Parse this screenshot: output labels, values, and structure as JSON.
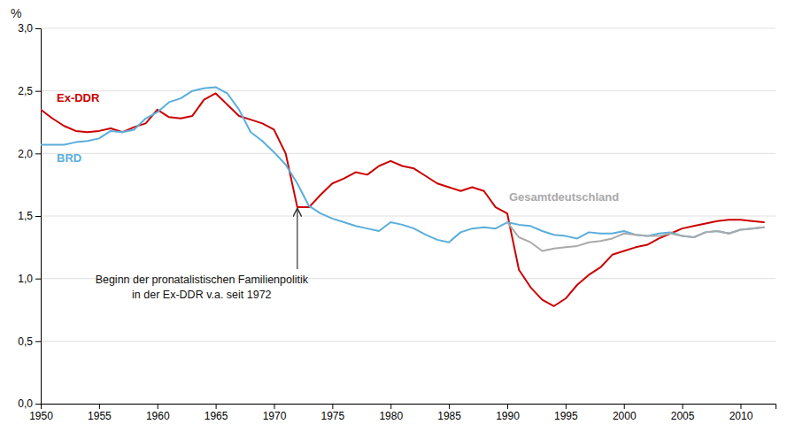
{
  "chart_data": {
    "type": "line",
    "y_label": "%",
    "xlim": [
      1950,
      2013
    ],
    "ylim": [
      0,
      3
    ],
    "xticks": [
      1950,
      1955,
      1960,
      1965,
      1970,
      1975,
      1980,
      1985,
      1990,
      1995,
      2000,
      2005,
      2010
    ],
    "yticks": [
      {
        "value": 0,
        "label": "0,0"
      },
      {
        "value": 0.5,
        "label": "0,5"
      },
      {
        "value": 1,
        "label": "1,0"
      },
      {
        "value": 1.5,
        "label": "1,5"
      },
      {
        "value": 2,
        "label": "2,0"
      },
      {
        "value": 2.5,
        "label": "2,5"
      },
      {
        "value": 3,
        "label": "3,0"
      }
    ],
    "grid": true,
    "series": [
      {
        "name": "Ex-DDR",
        "color": "#cc0000",
        "x": [
          1950,
          1951,
          1952,
          1953,
          1954,
          1955,
          1956,
          1957,
          1958,
          1959,
          1960,
          1961,
          1962,
          1963,
          1964,
          1965,
          1966,
          1967,
          1968,
          1969,
          1970,
          1971,
          1972,
          1973,
          1974,
          1975,
          1976,
          1977,
          1978,
          1979,
          1980,
          1981,
          1982,
          1983,
          1984,
          1985,
          1986,
          1987,
          1988,
          1989,
          1990,
          1991,
          1992,
          1993,
          1994,
          1995,
          1996,
          1997,
          1998,
          1999,
          2000,
          2001,
          2002,
          2003,
          2004,
          2005,
          2006,
          2007,
          2008,
          2009,
          2010,
          2011,
          2012
        ],
        "values": [
          2.35,
          2.28,
          2.22,
          2.18,
          2.17,
          2.18,
          2.2,
          2.17,
          2.21,
          2.24,
          2.35,
          2.29,
          2.28,
          2.3,
          2.43,
          2.48,
          2.39,
          2.3,
          2.27,
          2.24,
          2.19,
          2.0,
          1.57,
          1.57,
          1.67,
          1.76,
          1.8,
          1.85,
          1.83,
          1.9,
          1.94,
          1.9,
          1.88,
          1.82,
          1.76,
          1.73,
          1.7,
          1.73,
          1.7,
          1.57,
          1.52,
          1.07,
          0.93,
          0.83,
          0.78,
          0.84,
          0.95,
          1.03,
          1.09,
          1.19,
          1.22,
          1.25,
          1.27,
          1.32,
          1.36,
          1.4,
          1.42,
          1.44,
          1.46,
          1.47,
          1.47,
          1.46,
          1.45
        ]
      },
      {
        "name": "BRD",
        "color": "#5aaedc",
        "x": [
          1950,
          1951,
          1952,
          1953,
          1954,
          1955,
          1956,
          1957,
          1958,
          1959,
          1960,
          1961,
          1962,
          1963,
          1964,
          1965,
          1966,
          1967,
          1968,
          1969,
          1970,
          1971,
          1972,
          1973,
          1974,
          1975,
          1976,
          1977,
          1978,
          1979,
          1980,
          1981,
          1982,
          1983,
          1984,
          1985,
          1986,
          1987,
          1988,
          1989,
          1990,
          1991,
          1992,
          1993,
          1994,
          1995,
          1996,
          1997,
          1998,
          1999,
          2000,
          2001,
          2002,
          2003,
          2004,
          2005,
          2006,
          2007,
          2008,
          2009,
          2010,
          2011,
          2012
        ],
        "values": [
          2.07,
          2.07,
          2.07,
          2.09,
          2.1,
          2.12,
          2.18,
          2.17,
          2.19,
          2.28,
          2.33,
          2.41,
          2.44,
          2.5,
          2.52,
          2.53,
          2.48,
          2.35,
          2.17,
          2.1,
          2.01,
          1.91,
          1.76,
          1.58,
          1.52,
          1.48,
          1.45,
          1.42,
          1.4,
          1.38,
          1.45,
          1.43,
          1.4,
          1.35,
          1.31,
          1.29,
          1.37,
          1.4,
          1.41,
          1.4,
          1.45,
          1.43,
          1.42,
          1.38,
          1.35,
          1.34,
          1.32,
          1.37,
          1.36,
          1.36,
          1.38,
          1.35,
          1.34,
          1.36,
          1.37,
          1.34,
          1.33,
          1.37,
          1.38,
          1.36,
          1.39,
          1.4,
          1.41
        ]
      },
      {
        "name": "Gesamtdeutschland",
        "color": "#aaaaaa",
        "x": [
          1990,
          1991,
          1992,
          1993,
          1994,
          1995,
          1996,
          1997,
          1998,
          1999,
          2000,
          2001,
          2002,
          2003,
          2004,
          2005,
          2006,
          2007,
          2008,
          2009,
          2010,
          2011,
          2012
        ],
        "values": [
          1.45,
          1.33,
          1.29,
          1.22,
          1.24,
          1.25,
          1.26,
          1.29,
          1.3,
          1.32,
          1.36,
          1.35,
          1.34,
          1.34,
          1.36,
          1.34,
          1.33,
          1.37,
          1.38,
          1.36,
          1.39,
          1.4,
          1.41
        ]
      }
    ],
    "annotation": {
      "text": [
        "Beginn der pronatalistischen Familienpolitik",
        "in der Ex-DDR v.a. seit 1972"
      ],
      "x": 1972,
      "y": 1.57
    }
  }
}
